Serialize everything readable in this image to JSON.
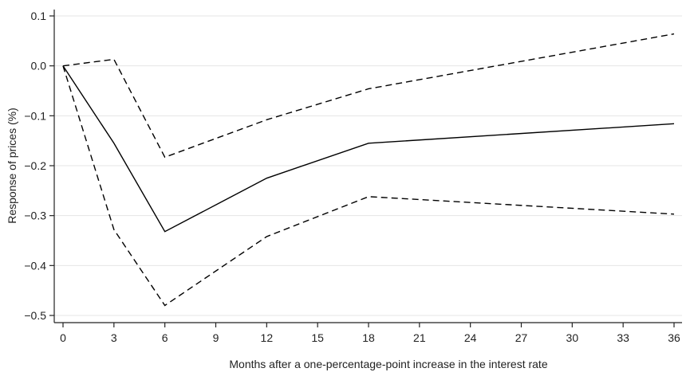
{
  "chart_data": {
    "type": "line",
    "title": "",
    "xlabel": "Months after a one-percentage-point increase in the interest rate",
    "ylabel": "Response of prices (%)",
    "xlim": [
      0,
      36
    ],
    "ylim": [
      -0.5,
      0.1
    ],
    "x_ticks": [
      0,
      3,
      6,
      9,
      12,
      15,
      18,
      21,
      24,
      27,
      30,
      33,
      36
    ],
    "y_ticks": [
      0.1,
      0.0,
      -0.1,
      -0.2,
      -0.3,
      -0.4,
      -0.5
    ],
    "y_tick_labels": [
      "0.1",
      "0.0",
      "−0.1",
      "−0.2",
      "−0.3",
      "−0.4",
      "−0.5"
    ],
    "grid": "horizontal",
    "legend": "none",
    "series": [
      {
        "style": "solid",
        "color": "#000000",
        "points": [
          [
            0,
            0.0
          ],
          [
            3,
            -0.155
          ],
          [
            6,
            -0.332
          ],
          [
            12,
            -0.225
          ],
          [
            18,
            -0.155
          ],
          [
            36,
            -0.116
          ]
        ]
      },
      {
        "style": "dashed",
        "color": "#000000",
        "points": [
          [
            0,
            0.0
          ],
          [
            3,
            0.013
          ],
          [
            6,
            -0.183
          ],
          [
            12,
            -0.108
          ],
          [
            18,
            -0.046
          ],
          [
            36,
            0.064
          ]
        ]
      },
      {
        "style": "dashed",
        "color": "#000000",
        "points": [
          [
            0,
            0.0
          ],
          [
            3,
            -0.328
          ],
          [
            6,
            -0.48
          ],
          [
            12,
            -0.342
          ],
          [
            18,
            -0.262
          ],
          [
            36,
            -0.297
          ]
        ]
      }
    ]
  }
}
